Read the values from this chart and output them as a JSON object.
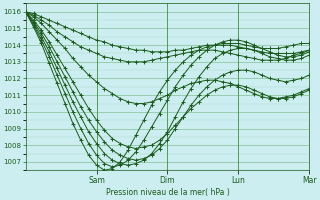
{
  "bg_color": "#cceef0",
  "grid_color": "#4a9a4a",
  "line_color": "#1a5a1a",
  "marker_color": "#1a5a1a",
  "xlabel": "Pression niveau de la mer( hPa )",
  "ylabel_ticks": [
    1007,
    1008,
    1009,
    1010,
    1011,
    1012,
    1013,
    1014,
    1015,
    1016
  ],
  "ylim": [
    1006.5,
    1016.5
  ],
  "xlim": [
    0,
    4.0
  ],
  "xtick_day_labels": [
    "Sam",
    "Dim",
    "Lun",
    "Mar"
  ],
  "xtick_day_positions": [
    1.0,
    2.0,
    3.0,
    4.0
  ],
  "series": [
    [
      1016.0,
      1015.9,
      1015.7,
      1015.5,
      1015.3,
      1015.1,
      1014.9,
      1014.7,
      1014.5,
      1014.3,
      1014.2,
      1014.0,
      1013.9,
      1013.8,
      1013.7,
      1013.7,
      1013.6,
      1013.6,
      1013.6,
      1013.7,
      1013.7,
      1013.8,
      1013.9,
      1014.0,
      1014.0,
      1014.1,
      1014.1,
      1014.1,
      1014.0,
      1013.9,
      1013.8,
      1013.8,
      1013.8,
      1013.9,
      1014.0,
      1014.1,
      1014.1
    ],
    [
      1016.0,
      1015.8,
      1015.5,
      1015.2,
      1014.8,
      1014.5,
      1014.2,
      1013.9,
      1013.7,
      1013.5,
      1013.3,
      1013.2,
      1013.1,
      1013.0,
      1013.0,
      1013.0,
      1013.1,
      1013.2,
      1013.3,
      1013.4,
      1013.5,
      1013.6,
      1013.7,
      1013.7,
      1013.7,
      1013.6,
      1013.5,
      1013.4,
      1013.3,
      1013.2,
      1013.1,
      1013.1,
      1013.1,
      1013.2,
      1013.4,
      1013.5,
      1013.7
    ],
    [
      1016.0,
      1015.7,
      1015.3,
      1014.8,
      1014.3,
      1013.8,
      1013.2,
      1012.7,
      1012.2,
      1011.8,
      1011.4,
      1011.1,
      1010.8,
      1010.6,
      1010.5,
      1010.5,
      1010.6,
      1010.8,
      1011.0,
      1011.3,
      1011.5,
      1011.7,
      1011.8,
      1011.9,
      1011.9,
      1011.8,
      1011.7,
      1011.5,
      1011.3,
      1011.1,
      1010.9,
      1010.8,
      1010.8,
      1010.9,
      1011.0,
      1011.2,
      1011.4
    ],
    [
      1016.0,
      1015.5,
      1014.9,
      1014.2,
      1013.4,
      1012.6,
      1011.8,
      1011.0,
      1010.2,
      1009.5,
      1008.9,
      1008.4,
      1008.1,
      1007.9,
      1007.8,
      1007.9,
      1008.0,
      1008.3,
      1008.7,
      1009.2,
      1009.7,
      1010.2,
      1010.6,
      1011.0,
      1011.3,
      1011.5,
      1011.6,
      1011.6,
      1011.5,
      1011.3,
      1011.1,
      1010.9,
      1010.8,
      1010.8,
      1010.9,
      1011.1,
      1011.3
    ],
    [
      1016.0,
      1015.4,
      1014.7,
      1013.9,
      1013.0,
      1012.1,
      1011.2,
      1010.3,
      1009.5,
      1008.8,
      1008.2,
      1007.7,
      1007.4,
      1007.2,
      1007.1,
      1007.2,
      1007.4,
      1007.8,
      1008.3,
      1009.0,
      1009.7,
      1010.4,
      1011.0,
      1011.5,
      1011.9,
      1012.2,
      1012.4,
      1012.5,
      1012.5,
      1012.4,
      1012.2,
      1012.0,
      1011.9,
      1011.8,
      1011.9,
      1012.0,
      1012.2
    ],
    [
      1016.0,
      1015.3,
      1014.5,
      1013.6,
      1012.6,
      1011.6,
      1010.6,
      1009.7,
      1008.8,
      1008.1,
      1007.5,
      1007.1,
      1006.9,
      1006.8,
      1006.9,
      1007.1,
      1007.5,
      1008.1,
      1008.8,
      1009.7,
      1010.6,
      1011.4,
      1012.1,
      1012.7,
      1013.2,
      1013.5,
      1013.7,
      1013.8,
      1013.8,
      1013.7,
      1013.5,
      1013.3,
      1013.2,
      1013.1,
      1013.1,
      1013.2,
      1013.4
    ],
    [
      1016.0,
      1015.2,
      1014.3,
      1013.3,
      1012.2,
      1011.1,
      1010.0,
      1009.0,
      1008.1,
      1007.4,
      1006.9,
      1006.7,
      1006.8,
      1007.1,
      1007.6,
      1008.3,
      1009.1,
      1009.9,
      1010.7,
      1011.5,
      1012.2,
      1012.8,
      1013.3,
      1013.7,
      1014.0,
      1014.2,
      1014.3,
      1014.3,
      1014.2,
      1014.0,
      1013.8,
      1013.6,
      1013.4,
      1013.3,
      1013.3,
      1013.4,
      1013.6
    ],
    [
      1016.0,
      1015.1,
      1014.1,
      1012.9,
      1011.7,
      1010.5,
      1009.3,
      1008.3,
      1007.4,
      1006.8,
      1006.5,
      1006.6,
      1007.0,
      1007.7,
      1008.6,
      1009.5,
      1010.4,
      1011.2,
      1011.9,
      1012.5,
      1013.0,
      1013.4,
      1013.7,
      1013.9,
      1014.0,
      1014.0,
      1014.0,
      1013.9,
      1013.8,
      1013.7,
      1013.6,
      1013.5,
      1013.5,
      1013.5,
      1013.5,
      1013.6,
      1013.7
    ]
  ]
}
